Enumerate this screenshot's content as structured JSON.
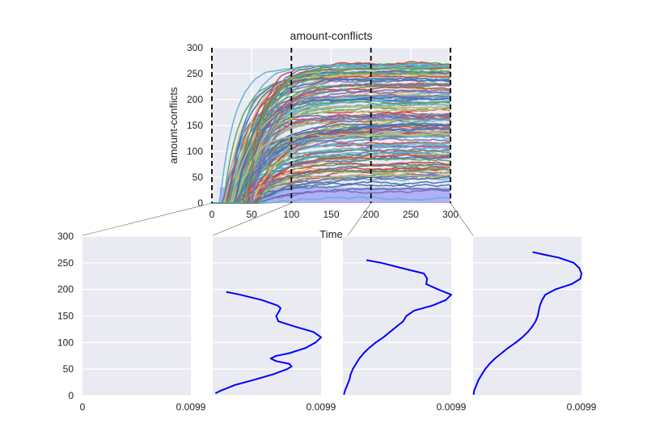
{
  "chart_data": [
    {
      "type": "line",
      "title": "amount-conflicts",
      "xlabel": "Time",
      "ylabel": "amount-conflicts",
      "xlim": [
        0,
        300
      ],
      "ylim": [
        0,
        300
      ],
      "xticks": [
        "0",
        "50",
        "100",
        "150",
        "200",
        "250",
        "300"
      ],
      "yticks": [
        "0",
        "50",
        "100",
        "150",
        "200",
        "250",
        "300"
      ],
      "grid": true,
      "vlines": [
        0,
        100,
        200,
        300
      ],
      "vline_style": "black dashed",
      "series_note": "many overlapping trajectories rising from ~0 at Time 10-40 and saturating between ~15 and ~270 by Time 300",
      "band": {
        "x": [
          10,
          300
        ],
        "y": [
          0,
          30
        ],
        "color": "#a7a4f6"
      },
      "palette": [
        "#4c72b0",
        "#55a868",
        "#c44e52",
        "#8172b2",
        "#ccb974",
        "#64b5cd"
      ]
    },
    {
      "type": "line",
      "xlim": [
        0,
        0.0099
      ],
      "ylim": [
        0,
        300
      ],
      "xticks": [
        "0",
        "0.0099"
      ],
      "yticks": [
        "0",
        "50",
        "100",
        "150",
        "200",
        "250",
        "300"
      ],
      "snapshot_time": 0,
      "x": [],
      "y": []
    },
    {
      "type": "line",
      "xlim": [
        0,
        0.0099
      ],
      "ylim": [
        0,
        300
      ],
      "xticks": [
        "0.0099"
      ],
      "snapshot_time": 100,
      "color": "#0000ff",
      "y": [
        5,
        10,
        20,
        30,
        40,
        50,
        55,
        60,
        65,
        70,
        75,
        80,
        90,
        100,
        110,
        120,
        130,
        140,
        150,
        160,
        165,
        170,
        180,
        190,
        195
      ],
      "x": [
        0.0003,
        0.0008,
        0.002,
        0.0038,
        0.0055,
        0.0068,
        0.0072,
        0.007,
        0.0058,
        0.0053,
        0.0058,
        0.007,
        0.0085,
        0.0094,
        0.0099,
        0.0092,
        0.0075,
        0.006,
        0.0058,
        0.0061,
        0.0062,
        0.0059,
        0.0045,
        0.0025,
        0.0013
      ]
    },
    {
      "type": "line",
      "xlim": [
        0,
        0.0099
      ],
      "ylim": [
        0,
        300
      ],
      "xticks": [
        "0.0099"
      ],
      "snapshot_time": 200,
      "color": "#0000ff",
      "y": [
        3,
        10,
        20,
        30,
        40,
        50,
        60,
        70,
        80,
        90,
        100,
        110,
        120,
        130,
        140,
        150,
        160,
        170,
        180,
        190,
        200,
        210,
        220,
        230,
        240,
        250,
        255
      ],
      "x": [
        0.0001,
        0.0002,
        0.0004,
        0.0006,
        0.0007,
        0.0009,
        0.0012,
        0.0015,
        0.0019,
        0.0024,
        0.003,
        0.0037,
        0.0043,
        0.0049,
        0.0055,
        0.0058,
        0.0065,
        0.0082,
        0.0094,
        0.0099,
        0.0087,
        0.0076,
        0.0077,
        0.0074,
        0.0054,
        0.0035,
        0.0022
      ]
    },
    {
      "type": "line",
      "xlim": [
        0,
        0.0099
      ],
      "ylim": [
        0,
        300
      ],
      "xticks": [
        "0.0099"
      ],
      "snapshot_time": 300,
      "color": "#0000ff",
      "y": [
        3,
        10,
        20,
        30,
        40,
        50,
        60,
        70,
        80,
        90,
        100,
        110,
        120,
        130,
        140,
        150,
        160,
        170,
        180,
        190,
        200,
        210,
        220,
        230,
        240,
        250,
        260,
        265,
        270
      ],
      "x": [
        5e-05,
        0.0001,
        0.0003,
        0.0005,
        0.0008,
        0.0011,
        0.0015,
        0.002,
        0.0026,
        0.0032,
        0.0039,
        0.0045,
        0.005,
        0.0054,
        0.0057,
        0.0059,
        0.006,
        0.0061,
        0.0063,
        0.0066,
        0.0075,
        0.009,
        0.0098,
        0.0099,
        0.0097,
        0.0092,
        0.0078,
        0.0066,
        0.0055
      ]
    }
  ]
}
